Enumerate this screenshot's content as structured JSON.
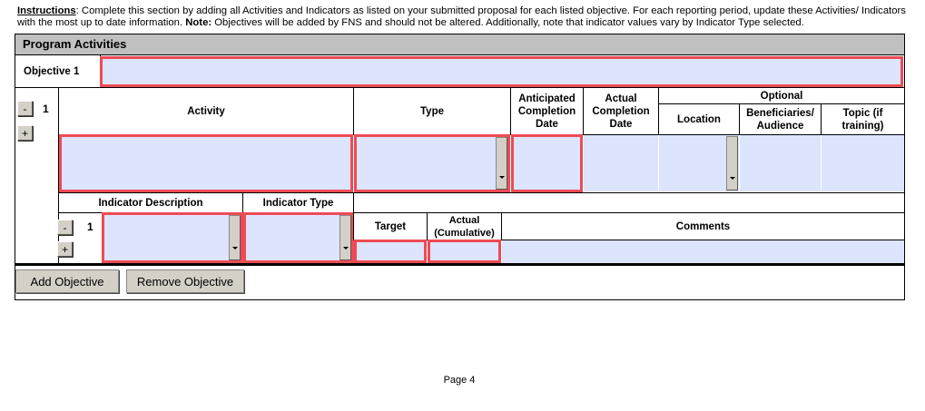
{
  "instructions": {
    "label": "Instructions",
    "text1": ": Complete this section by adding all Activities and Indicators as listed on your submitted proposal for each listed objective. For each reporting period, update these Activities/ Indicators with the most up to date information. ",
    "note_label": "Note:",
    "text2": " Objectives will be added by FNS and should not be altered. Additionally, note that indicator values vary by Indicator Type selected."
  },
  "section_title": "Program Activities",
  "objective": {
    "label": "Objective 1",
    "value": ""
  },
  "activity": {
    "number": "1",
    "remove": "-",
    "add": "+",
    "headers": {
      "activity": "Activity",
      "type": "Type",
      "anticipated": "Anticipated Completion Date",
      "actual": "Actual Completion Date",
      "optional": "Optional",
      "location": "Location",
      "beneficiaries": "Beneficiaries/ Audience",
      "topic": "Topic (if training)"
    }
  },
  "indicator": {
    "number": "1",
    "remove": "-",
    "add": "+",
    "headers": {
      "description": "Indicator Description",
      "type": "Indicator Type",
      "target": "Target",
      "actual": "Actual (Cumulative)",
      "comments": "Comments"
    }
  },
  "buttons": {
    "add_objective": "Add Objective",
    "remove_objective": "Remove Objective"
  },
  "footer": {
    "page": "Page 4"
  },
  "colors": {
    "required_border": "#ee4b55",
    "field_fill": "#dde4fd",
    "header_fill": "#c0c0c0"
  }
}
